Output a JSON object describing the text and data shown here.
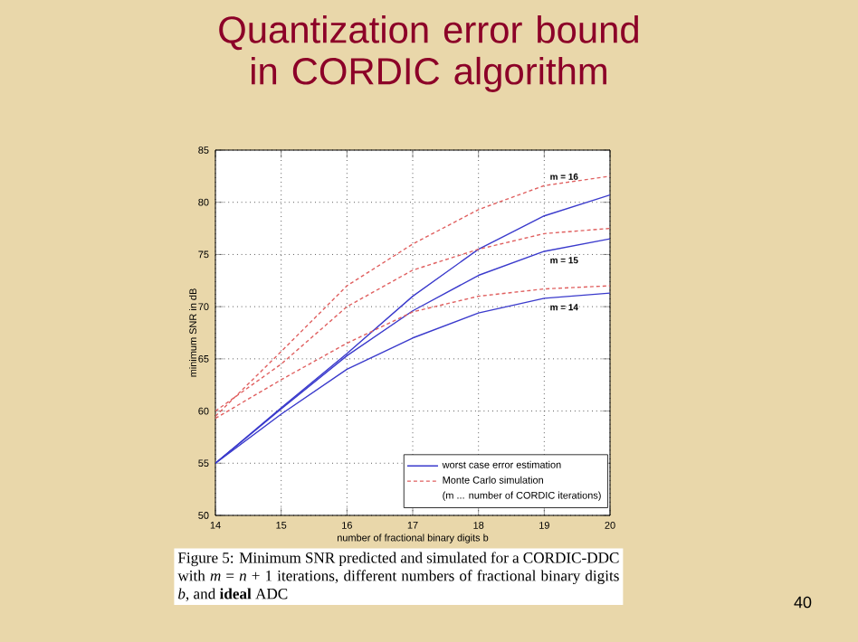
{
  "chart_data": {
    "type": "line",
    "title": "Quantization error bound in CORDIC algorithm",
    "xlabel": "number of fractional binary digits b",
    "ylabel": "minimum SNR in dB",
    "x": [
      14,
      15,
      16,
      17,
      18,
      19,
      20
    ],
    "series": [
      {
        "name": "worst case error estimation",
        "color": "#3a3acc",
        "line_style": "solid",
        "values": [
          55,
          60.3,
          65.5,
          71,
          75.5,
          78.7,
          80.7
        ]
      },
      {
        "color": "#3a3acc",
        "line_style": "solid",
        "values": [
          55,
          60.2,
          65.3,
          69.6,
          73,
          75.3,
          76.5
        ]
      },
      {
        "color": "#3a3acc",
        "line_style": "solid",
        "values": [
          55,
          59.7,
          64,
          67,
          69.4,
          70.8,
          71.3
        ]
      },
      {
        "name": "Monte Carlo simulation",
        "color": "#e06060",
        "line_style": "dashed",
        "values": [
          59.5,
          65.7,
          72,
          76,
          79.3,
          81.6,
          82.5
        ]
      },
      {
        "color": "#e06060",
        "line_style": "dashed",
        "values": [
          60,
          64.5,
          70,
          73.5,
          75.5,
          77,
          77.5
        ]
      },
      {
        "color": "#e06060",
        "line_style": "dashed",
        "values": [
          59.3,
          63,
          66.5,
          69.5,
          71,
          71.7,
          72
        ]
      }
    ],
    "xlim": [
      14,
      20
    ],
    "ylim": [
      50,
      85
    ],
    "xticks": [
      14,
      15,
      16,
      17,
      18,
      19,
      20
    ],
    "yticks": [
      50,
      55,
      60,
      65,
      70,
      75,
      80,
      85
    ],
    "grid": true,
    "legend": "bottom right",
    "marker": "none",
    "annotations": [
      "m = 16",
      "m = 15",
      "m = 14",
      "(m ... number of CORDIC iterations)",
      "Figure 5:  Minimum SNR predicted and simulated for a CORDIC-DDC with *m* = *n* + 1 iterations, different numbers of fractional binary digits *b*, and **ideal** ADC",
      "40"
    ]
  }
}
